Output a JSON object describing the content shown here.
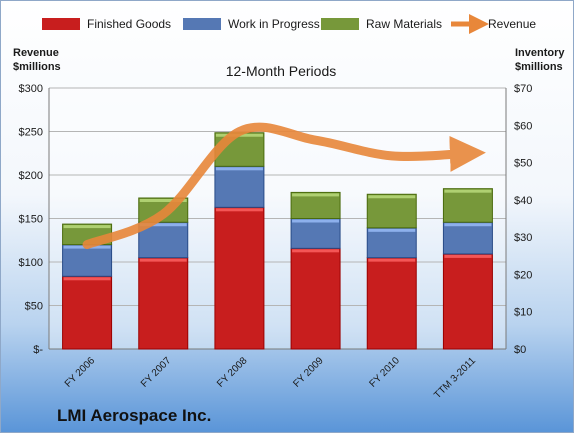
{
  "chart_data": {
    "type": "bar",
    "subtitle": "12-Month Periods",
    "company": "LMI Aerospace Inc.",
    "categories": [
      "FY 2006",
      "FY 2007",
      "FY 2008",
      "FY 2009",
      "FY 2010",
      "TTM 3-2011"
    ],
    "series": [
      {
        "name": "Finished Goods",
        "axis": "right",
        "color": "#c81e1e",
        "values": [
          19.5,
          24.5,
          38,
          27,
          24.5,
          25.5
        ]
      },
      {
        "name": "Work in Progress",
        "axis": "right",
        "color": "#5578b4",
        "values": [
          8.5,
          9.5,
          11,
          8,
          8,
          8.5
        ]
      },
      {
        "name": "Raw Materials",
        "axis": "right",
        "color": "#77983a",
        "values": [
          5.5,
          6.5,
          9,
          7,
          9,
          9
        ]
      },
      {
        "name": "Revenue",
        "axis": "left",
        "type": "line",
        "color": "#e8873a",
        "values": [
          120,
          155,
          250,
          240,
          222,
          225
        ]
      }
    ],
    "left_axis": {
      "title_line1": "Revenue",
      "title_line2": "$millions",
      "ylim": [
        0,
        300
      ],
      "ticks": [
        "$-",
        "$50",
        "$100",
        "$150",
        "$200",
        "$250",
        "$300"
      ]
    },
    "right_axis": {
      "title_line1": "Inventory",
      "title_line2": "$millions",
      "ylim": [
        0,
        70
      ],
      "ticks": [
        "$0",
        "$10",
        "$20",
        "$30",
        "$40",
        "$50",
        "$60",
        "$70"
      ]
    },
    "stacked": true,
    "grid": true,
    "legend_position": "top"
  }
}
